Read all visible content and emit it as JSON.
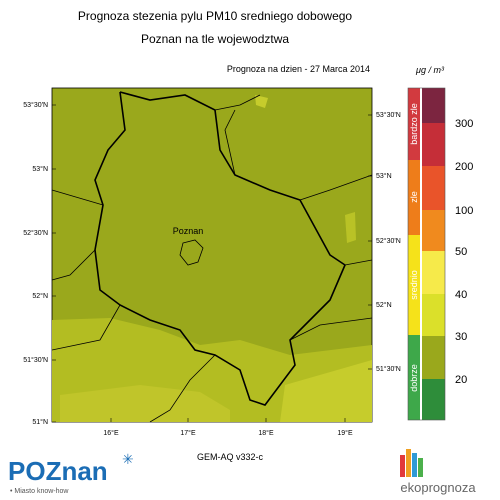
{
  "header": {
    "title": "Prognoza stezenia pylu PM10 sredniego dobowego",
    "subtitle": "Poznan na tle wojewodztwa"
  },
  "forecast_date": "Prognoza na dzien -  27 Marca 2014",
  "unit": "μg / m³",
  "map": {
    "city": "Poznan",
    "left_lat_labels": [
      "53°30'N",
      "53°N",
      "52°30'N",
      "52°N",
      "51°30'N",
      "51°N"
    ],
    "right_lat_labels": [
      "53°30'N",
      "53°N",
      "52°30'N",
      "52°N",
      "51°30'N"
    ],
    "lon_labels": [
      "16°E",
      "17°E",
      "18°E",
      "19°E"
    ]
  },
  "legend": {
    "levels": [
      300,
      200,
      100,
      50,
      40,
      30,
      20
    ],
    "categories": [
      "bardzo zle",
      "zle",
      "srednio",
      "dobrze"
    ]
  },
  "model": "GEM-AQ v332-c",
  "footer": {
    "logo_left": "POZnan",
    "logo_left_tagline": "Miasto know-how",
    "logo_right": "ekoprognoza"
  }
}
